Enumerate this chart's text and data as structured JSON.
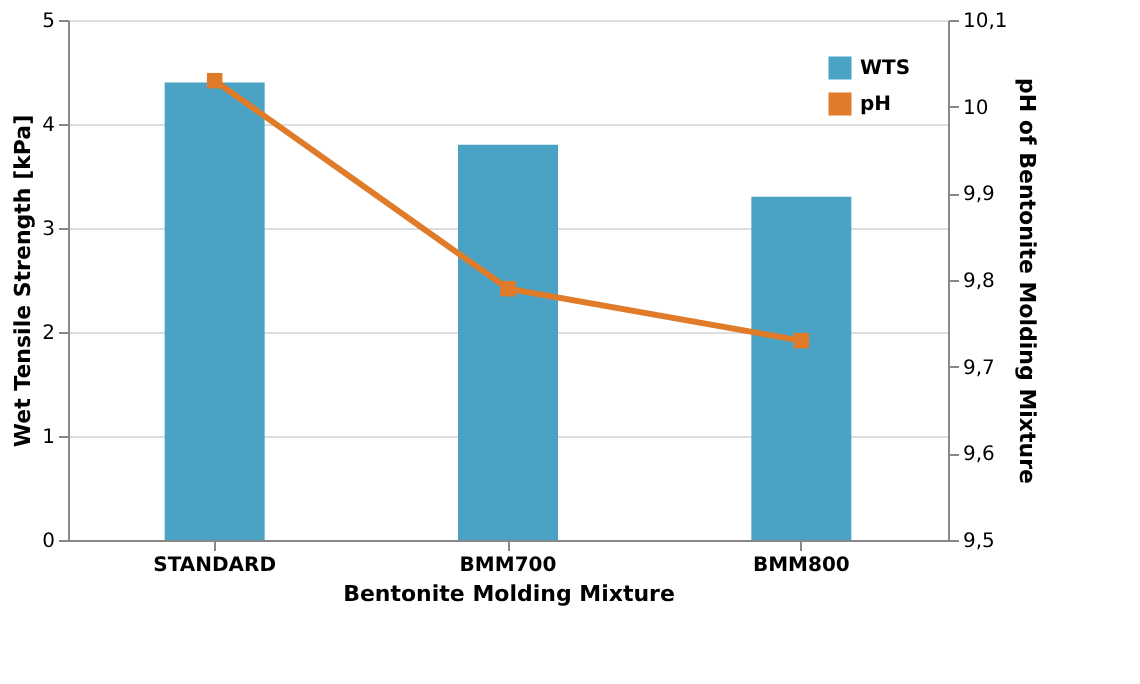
{
  "chart_data": {
    "type": "bar",
    "xlabel": "Bentonite Molding Mixture",
    "ylabel": "Wet Tensile Strength [kPa]",
    "y2label": "pH of Bentonite Molding Mixture",
    "categories": [
      "STANDARD",
      "BMM700",
      "BMM800"
    ],
    "series": [
      {
        "name": "WTS",
        "color": "#4aa3c4",
        "values": [
          4.4,
          3.8,
          3.3
        ]
      },
      {
        "name": "pH",
        "type": "line",
        "axis": "y2",
        "color": "#e07b2a",
        "values": [
          10.03,
          9.79,
          9.73
        ]
      }
    ],
    "ylim": [
      0,
      5
    ],
    "yticks": [
      0,
      1,
      2,
      3,
      4,
      5
    ],
    "y2lim": [
      9.5,
      10.1
    ],
    "y2ticks": [
      {
        "value": 9.5,
        "label": "9,5"
      },
      {
        "value": 9.6,
        "label": "9,6"
      },
      {
        "value": 9.7,
        "label": "9,7"
      },
      {
        "value": 9.8,
        "label": "9,8"
      },
      {
        "value": 9.9,
        "label": "9,9"
      },
      {
        "value": 10,
        "label": "10"
      },
      {
        "value": 10.1,
        "label": "10,1"
      }
    ],
    "grid": "y",
    "legend": "top right",
    "marker": "square"
  }
}
